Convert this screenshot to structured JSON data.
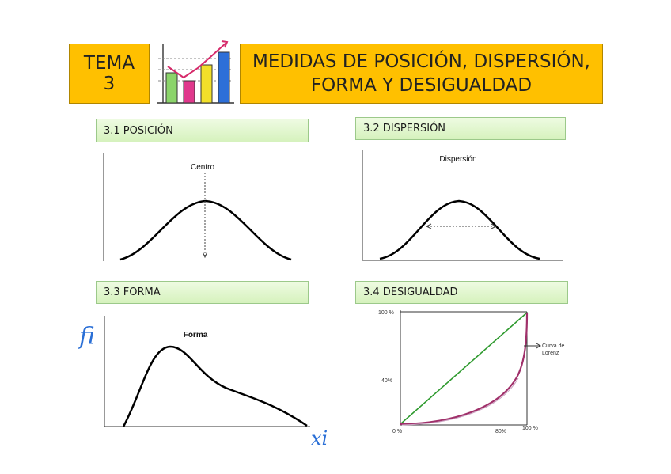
{
  "header": {
    "tema_line1": "TEMA",
    "tema_line2": "3",
    "title_line1": "MEDIDAS DE POSICIÓN, DISPERSIÓN,",
    "title_line2": "FORMA Y DESIGUALDAD"
  },
  "sections": [
    {
      "label": "3.1 POSICIÓN",
      "figure_label": "Centro"
    },
    {
      "label": "3.2 DISPERSIÓN",
      "figure_label": "Dispersión"
    },
    {
      "label": "3.3 FORMA",
      "figure_label": "Forma"
    },
    {
      "label": "3.4 DESIGUALDAD"
    }
  ],
  "handwriting": {
    "y_axis": "fi",
    "x_axis": "xi"
  },
  "lorenz": {
    "y_top": "100 %",
    "y_mid": "40%",
    "origin": "0 %",
    "x_mid": "80%",
    "x_end": "100 %",
    "curve_label_1": "Curva de",
    "curve_label_2": "Lorenz"
  },
  "colors": {
    "header_bg": "#ffc000",
    "section_bg": "#d6f2bd",
    "equality_line": "#2e9a2e",
    "lorenz_curve": "#a0306a",
    "handwriting": "#2a6fd6"
  }
}
